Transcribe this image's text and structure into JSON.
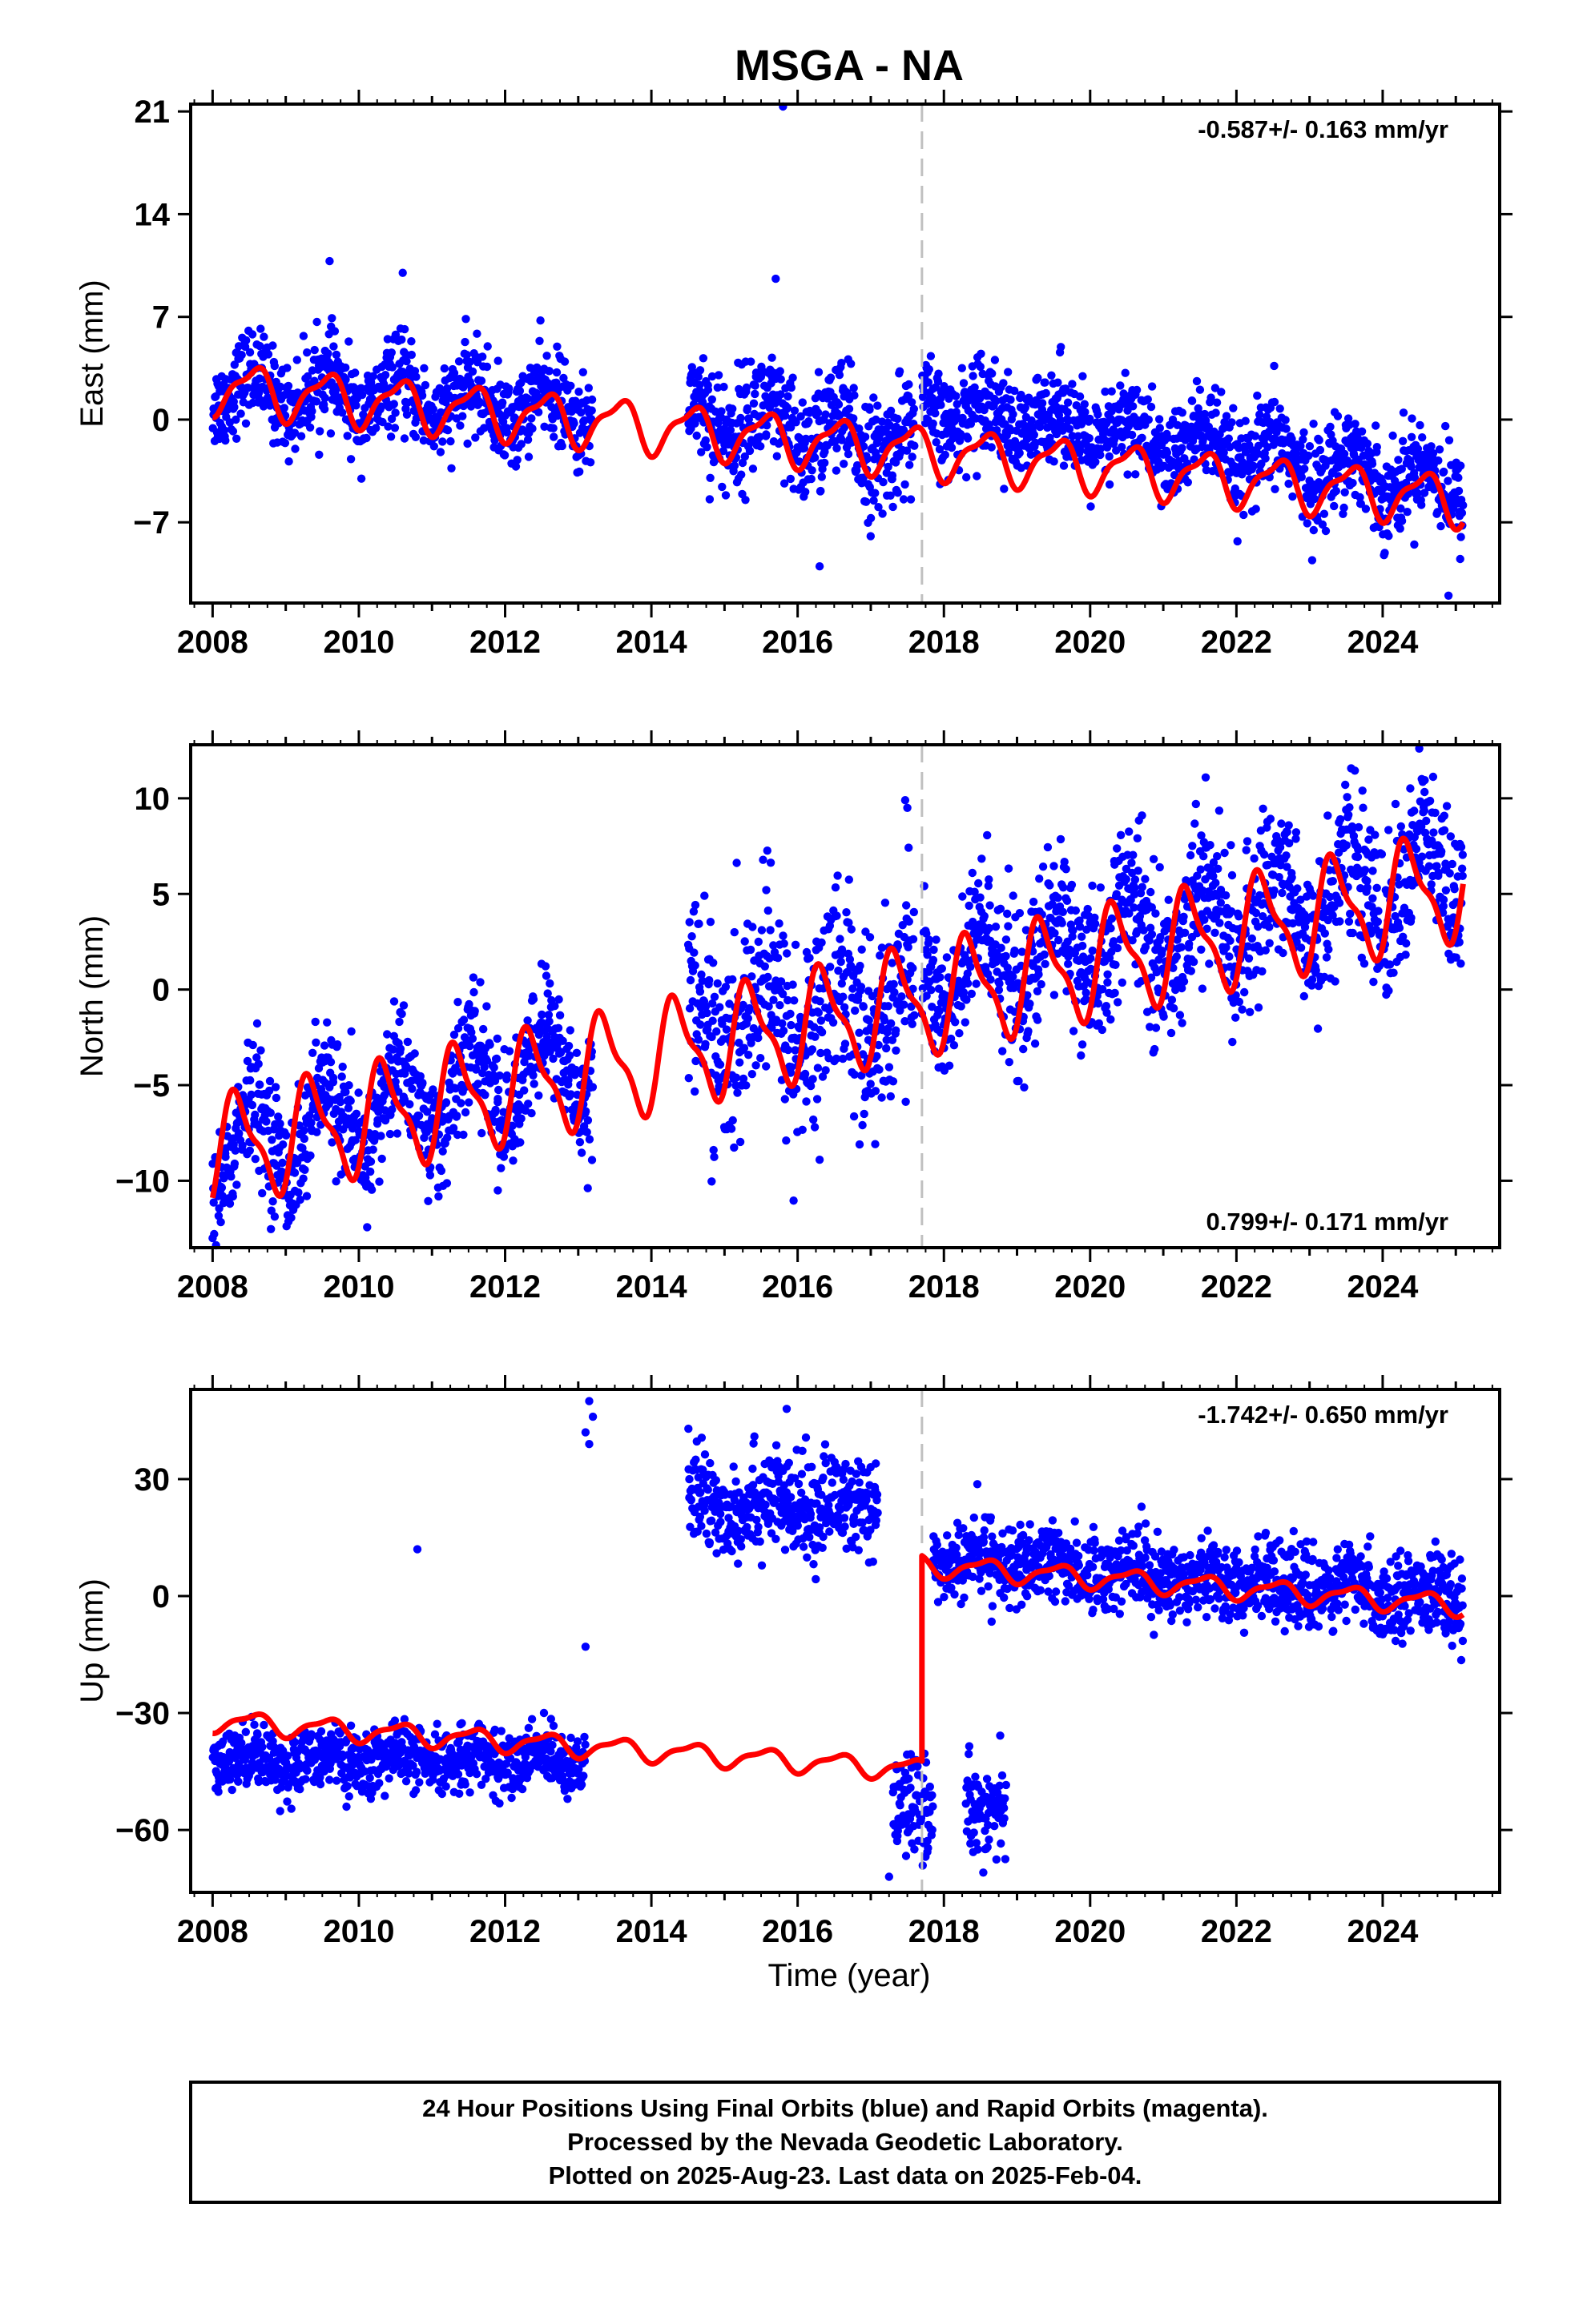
{
  "chart_data": {
    "type": "scatter",
    "title": "MSGA - NA",
    "xlabel": "Time (year)",
    "xlim": [
      2007.7,
      2025.6
    ],
    "x_ticks": [
      2008,
      2010,
      2012,
      2014,
      2016,
      2018,
      2020,
      2022,
      2024
    ],
    "x_tick_labels": [
      "2008",
      "2010",
      "2012",
      "2014",
      "2016",
      "2018",
      "2020",
      "2022",
      "2024"
    ],
    "event_line_x": 2017.7,
    "colors": {
      "points": "#0000ff",
      "model": "#ff0000",
      "event": "#c0c0c0"
    },
    "panels": [
      {
        "name": "east",
        "ylabel": "East (mm)",
        "ylim": [
          -12.5,
          21.5
        ],
        "y_ticks": [
          21,
          14,
          7,
          0,
          -7
        ],
        "y_tick_labels": [
          "21",
          "14",
          "7",
          "0",
          "−7"
        ],
        "rate": "-0.587+/- 0.163 mm/yr",
        "rate_position": "top-right",
        "series": [
          {
            "name": "Final Orbits",
            "type": "scatter",
            "color": "blue"
          },
          {
            "name": "Model",
            "type": "line",
            "color": "red"
          }
        ],
        "segments": [
          {
            "start": 2008.0,
            "end": 2013.2,
            "base": 2.2,
            "slope": -0.3,
            "noise": 1.5
          },
          {
            "start": 2014.5,
            "end": 2017.6,
            "base": 0.5,
            "slope": -0.8,
            "noise": 2.0
          },
          {
            "start": 2017.7,
            "end": 2025.1,
            "base": 1.0,
            "slope": -0.75,
            "noise": 1.6
          }
        ],
        "model": {
          "start": 2008.0,
          "end": 2025.1,
          "base": 2.2,
          "slope": -0.45,
          "amp": 1.6,
          "offset": 0
        },
        "outliers": [
          {
            "x": 2015.8,
            "y": 21.6
          },
          {
            "x": 2009.6,
            "y": 10.8
          },
          {
            "x": 2010.6,
            "y": 10.0
          },
          {
            "x": 2015.7,
            "y": 9.6
          },
          {
            "x": 2016.3,
            "y": -10.0
          },
          {
            "x": 2024.9,
            "y": -12.0
          }
        ]
      },
      {
        "name": "north",
        "ylabel": "North (mm)",
        "ylim": [
          -13.5,
          12.8
        ],
        "y_ticks": [
          10,
          5,
          0,
          -5,
          -10
        ],
        "y_tick_labels": [
          "10",
          "5",
          "0",
          "−5",
          "−10"
        ],
        "rate": "0.799+/- 0.171 mm/yr",
        "rate_position": "bottom-right",
        "series": [
          {
            "name": "Final Orbits",
            "type": "scatter",
            "color": "blue"
          },
          {
            "name": "Model",
            "type": "line",
            "color": "red"
          }
        ],
        "segments": [
          {
            "start": 2008.0,
            "end": 2013.2,
            "base": -8.5,
            "slope": 0.95,
            "noise": 1.6
          },
          {
            "start": 2014.5,
            "end": 2017.6,
            "base": -2.0,
            "slope": 0.5,
            "noise": 2.6
          },
          {
            "start": 2017.7,
            "end": 2025.1,
            "base": 0.5,
            "slope": 0.78,
            "noise": 2.0
          }
        ],
        "model": {
          "start": 2008.0,
          "end": 2025.1,
          "base": -8.5,
          "slope": 0.82,
          "amp": 2.6,
          "offset": 0.2
        },
        "outliers": [
          {
            "x": 2017.5,
            "y": 9.5
          },
          {
            "x": 2024.5,
            "y": 12.6
          },
          {
            "x": 2016.3,
            "y": -8.9
          },
          {
            "x": 2008.0,
            "y": -13.0
          },
          {
            "x": 2011.9,
            "y": -10.5
          }
        ]
      },
      {
        "name": "up",
        "ylabel": "Up (mm)",
        "ylim": [
          -76,
          53
        ],
        "y_ticks": [
          30,
          0,
          -30,
          -60
        ],
        "y_tick_labels": [
          "30",
          "0",
          "−30",
          "−60"
        ],
        "rate": "-1.742+/- 0.650 mm/yr",
        "rate_position": "top-right",
        "series": [
          {
            "name": "Final Orbits",
            "type": "scatter",
            "color": "blue"
          },
          {
            "name": "Model",
            "type": "line",
            "color": "red"
          }
        ],
        "segments": [
          {
            "start": 2008.0,
            "end": 2013.1,
            "base": -42,
            "slope": 0.0,
            "noise": 4.0
          },
          {
            "start": 2014.5,
            "end": 2017.1,
            "base": 24,
            "slope": -0.5,
            "noise": 6.5
          },
          {
            "start": 2017.3,
            "end": 2017.85,
            "base": -55,
            "slope": 0.0,
            "noise": 6.0
          },
          {
            "start": 2018.3,
            "end": 2018.85,
            "base": -56,
            "slope": 0.0,
            "noise": 6.0
          },
          {
            "start": 2017.85,
            "end": 2025.1,
            "base": 10,
            "slope": -1.45,
            "noise": 5.0
          }
        ],
        "model_pre": {
          "start": 2008.0,
          "end": 2017.7,
          "base": -32,
          "slope": -1.3,
          "amp": 2.5
        },
        "model_post": {
          "start": 2017.7,
          "end": 2025.1,
          "base": 8,
          "slope": -1.4,
          "amp": 2.5
        },
        "outliers": [
          {
            "x": 2013.15,
            "y": 50
          },
          {
            "x": 2013.2,
            "y": 46
          },
          {
            "x": 2013.1,
            "y": 42
          },
          {
            "x": 2013.15,
            "y": 39
          },
          {
            "x": 2010.8,
            "y": 12
          },
          {
            "x": 2013.1,
            "y": -13
          },
          {
            "x": 2017.25,
            "y": -72
          },
          {
            "x": 2015.85,
            "y": 48
          }
        ]
      }
    ]
  },
  "footer": {
    "line1": "24 Hour Positions Using Final Orbits (blue) and Rapid Orbits (magenta).",
    "line2": "Processed by the Nevada Geodetic Laboratory.",
    "line3": "Plotted on 2025-Aug-23. Last data on 2025-Feb-04."
  }
}
